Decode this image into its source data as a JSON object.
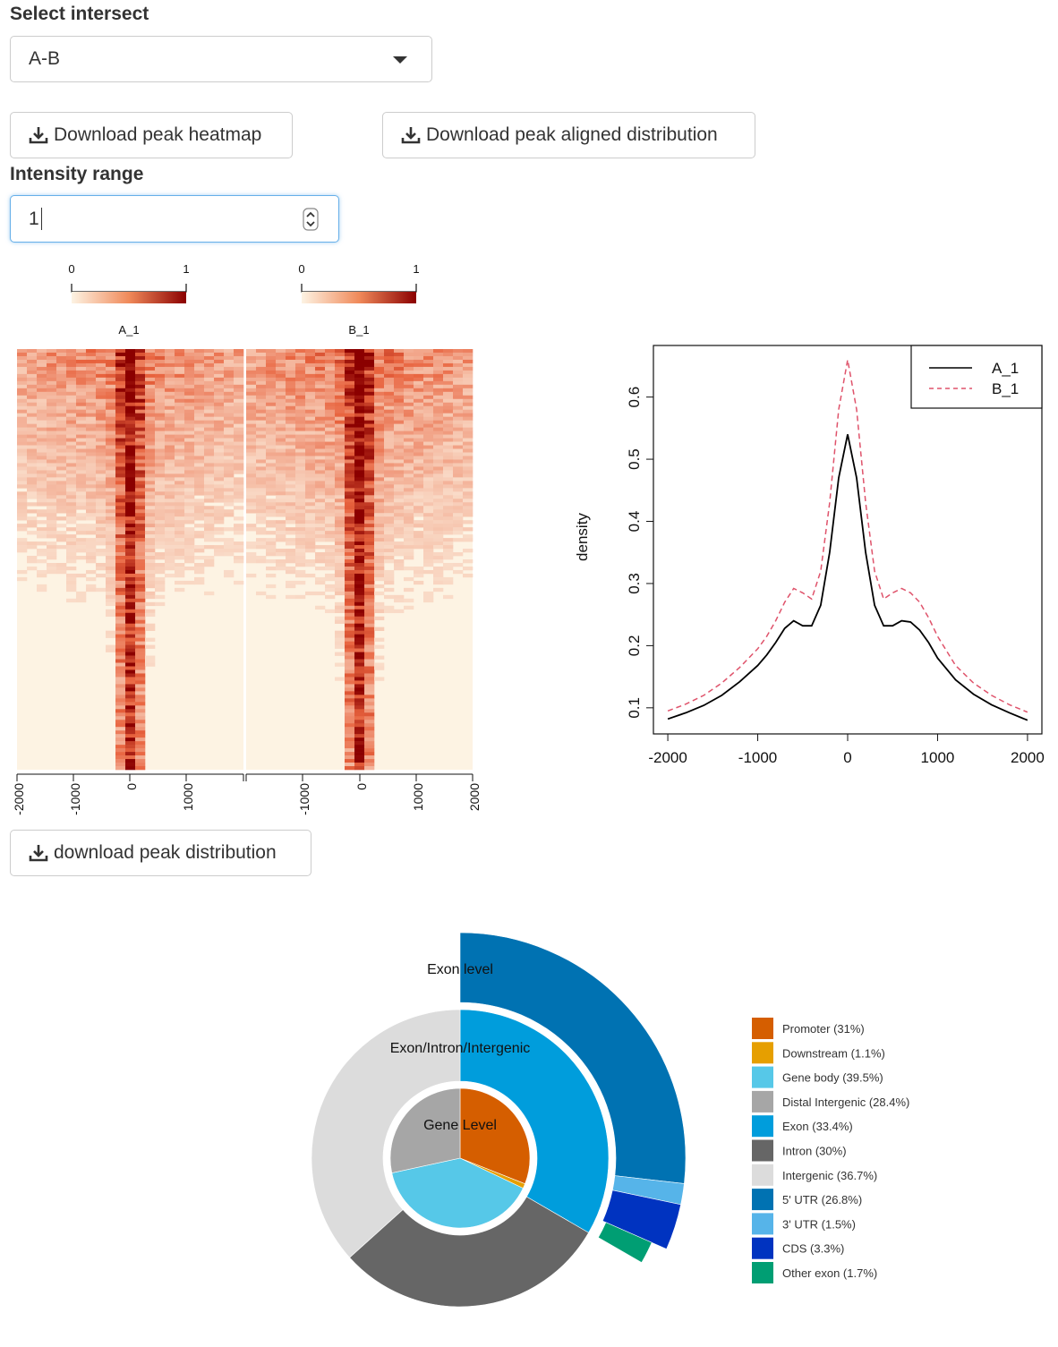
{
  "controls": {
    "intersect_label": "Select intersect",
    "intersect_value": "A-B",
    "download_heatmap_label": "Download peak heatmap",
    "download_aligned_label": "Download peak aligned distribution",
    "intensity_label": "Intensity range",
    "intensity_value": "1",
    "download_distribution_label": "download peak distribution"
  },
  "heatmap": {
    "panels": [
      {
        "name": "A_1",
        "color_key_min": "0",
        "color_key_max": "1"
      },
      {
        "name": "B_1",
        "color_key_min": "0",
        "color_key_max": "1"
      }
    ],
    "colors": {
      "low": "#fdf3e3",
      "mid": "#e8623d",
      "high": "#8b0000"
    },
    "panel_a_ticks": [
      "-2000",
      "-1000",
      "0",
      "1000"
    ],
    "panel_b_ticks": [
      "-1000",
      "0",
      "1000",
      "2000"
    ]
  },
  "chart_data": [
    {
      "type": "line",
      "xlabel": "",
      "ylabel": "density",
      "xlim": [
        -2000,
        2000
      ],
      "ylim": [
        0.08,
        0.66
      ],
      "x_ticks": [
        "-2000",
        "-1000",
        "0",
        "1000",
        "2000"
      ],
      "y_ticks": [
        "0.1",
        "0.2",
        "0.3",
        "0.4",
        "0.5",
        "0.6"
      ],
      "legend_position": "top-right",
      "x": [
        -2000,
        -1800,
        -1600,
        -1400,
        -1200,
        -1000,
        -900,
        -800,
        -700,
        -600,
        -500,
        -400,
        -300,
        -200,
        -100,
        0,
        100,
        200,
        300,
        400,
        500,
        600,
        700,
        800,
        900,
        1000,
        1200,
        1400,
        1600,
        1800,
        2000
      ],
      "series": [
        {
          "name": "A_1",
          "color": "#000000",
          "dash": "solid",
          "values": [
            0.082,
            0.092,
            0.104,
            0.12,
            0.142,
            0.168,
            0.185,
            0.205,
            0.228,
            0.24,
            0.232,
            0.232,
            0.265,
            0.35,
            0.47,
            0.54,
            0.47,
            0.35,
            0.265,
            0.232,
            0.232,
            0.24,
            0.238,
            0.225,
            0.205,
            0.18,
            0.145,
            0.122,
            0.105,
            0.092,
            0.08
          ]
        },
        {
          "name": "B_1",
          "color": "#df536b",
          "dash": "dashed",
          "values": [
            0.095,
            0.106,
            0.12,
            0.14,
            0.165,
            0.195,
            0.215,
            0.24,
            0.27,
            0.292,
            0.285,
            0.275,
            0.32,
            0.43,
            0.58,
            0.66,
            0.58,
            0.43,
            0.32,
            0.275,
            0.285,
            0.292,
            0.285,
            0.27,
            0.245,
            0.215,
            0.168,
            0.14,
            0.12,
            0.105,
            0.093
          ]
        }
      ]
    },
    {
      "type": "pie",
      "ring_labels": [
        "Gene Level",
        "Exon/Intron/Intergenic",
        "Exon level"
      ],
      "rings": [
        {
          "label": "Gene Level",
          "slices": [
            {
              "name": "Promoter (31%)",
              "value": 31,
              "color": "#d55e00"
            },
            {
              "name": "Downstream (1.1%)",
              "value": 1.1,
              "color": "#e69f00"
            },
            {
              "name": "Gene body (39.5%)",
              "value": 39.5,
              "color": "#56c8e8"
            },
            {
              "name": "Distal Intergenic (28.4%)",
              "value": 28.4,
              "color": "#a6a6a6"
            }
          ]
        },
        {
          "label": "Exon/Intron/Intergenic",
          "slices": [
            {
              "name": "Exon (33.4%)",
              "value": 33.4,
              "color": "#009ddc"
            },
            {
              "name": "Intron (30%)",
              "value": 30,
              "color": "#666666"
            },
            {
              "name": "Intergenic (36.7%)",
              "value": 36.7,
              "color": "#dcdcdc"
            }
          ]
        },
        {
          "label": "Exon level",
          "slices": [
            {
              "name": "5' UTR (26.8%)",
              "value": 26.8,
              "color": "#0072b2"
            },
            {
              "name": "3' UTR (1.5%)",
              "value": 1.5,
              "color": "#56b4e9"
            },
            {
              "name": "CDS (3.3%)",
              "value": 3.3,
              "color": "#0033c0"
            },
            {
              "name": "Other exon (1.7%)",
              "value": 1.7,
              "color": "#009e73"
            }
          ]
        }
      ]
    }
  ]
}
